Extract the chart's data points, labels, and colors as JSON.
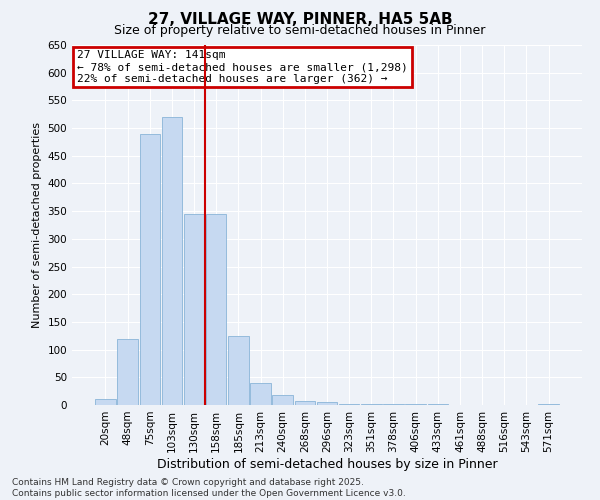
{
  "title": "27, VILLAGE WAY, PINNER, HA5 5AB",
  "subtitle": "Size of property relative to semi-detached houses in Pinner",
  "xlabel": "Distribution of semi-detached houses by size in Pinner",
  "ylabel": "Number of semi-detached properties",
  "footer_line1": "Contains HM Land Registry data © Crown copyright and database right 2025.",
  "footer_line2": "Contains public sector information licensed under the Open Government Licence v3.0.",
  "annotation_line1": "27 VILLAGE WAY: 141sqm",
  "annotation_line2": "← 78% of semi-detached houses are smaller (1,298)",
  "annotation_line3": "22% of semi-detached houses are larger (362) →",
  "categories": [
    "20sqm",
    "48sqm",
    "75sqm",
    "103sqm",
    "130sqm",
    "158sqm",
    "185sqm",
    "213sqm",
    "240sqm",
    "268sqm",
    "296sqm",
    "323sqm",
    "351sqm",
    "378sqm",
    "406sqm",
    "433sqm",
    "461sqm",
    "488sqm",
    "516sqm",
    "543sqm",
    "571sqm"
  ],
  "values": [
    10,
    120,
    490,
    520,
    345,
    345,
    125,
    40,
    18,
    8,
    5,
    2,
    1,
    1,
    1,
    1,
    0,
    0,
    0,
    0,
    2
  ],
  "bar_color": "#c6d9f1",
  "bar_edge_color": "#8ab4d8",
  "vline_color": "#cc0000",
  "vline_index": 4.5,
  "annotation_box_color": "#cc0000",
  "background_color": "#eef2f8",
  "ylim": [
    0,
    650
  ],
  "yticks": [
    0,
    50,
    100,
    150,
    200,
    250,
    300,
    350,
    400,
    450,
    500,
    550,
    600,
    650
  ],
  "title_fontsize": 11,
  "subtitle_fontsize": 9,
  "annotation_fontsize": 8,
  "tick_fontsize": 7.5,
  "ylabel_fontsize": 8,
  "xlabel_fontsize": 9,
  "footer_fontsize": 6.5
}
